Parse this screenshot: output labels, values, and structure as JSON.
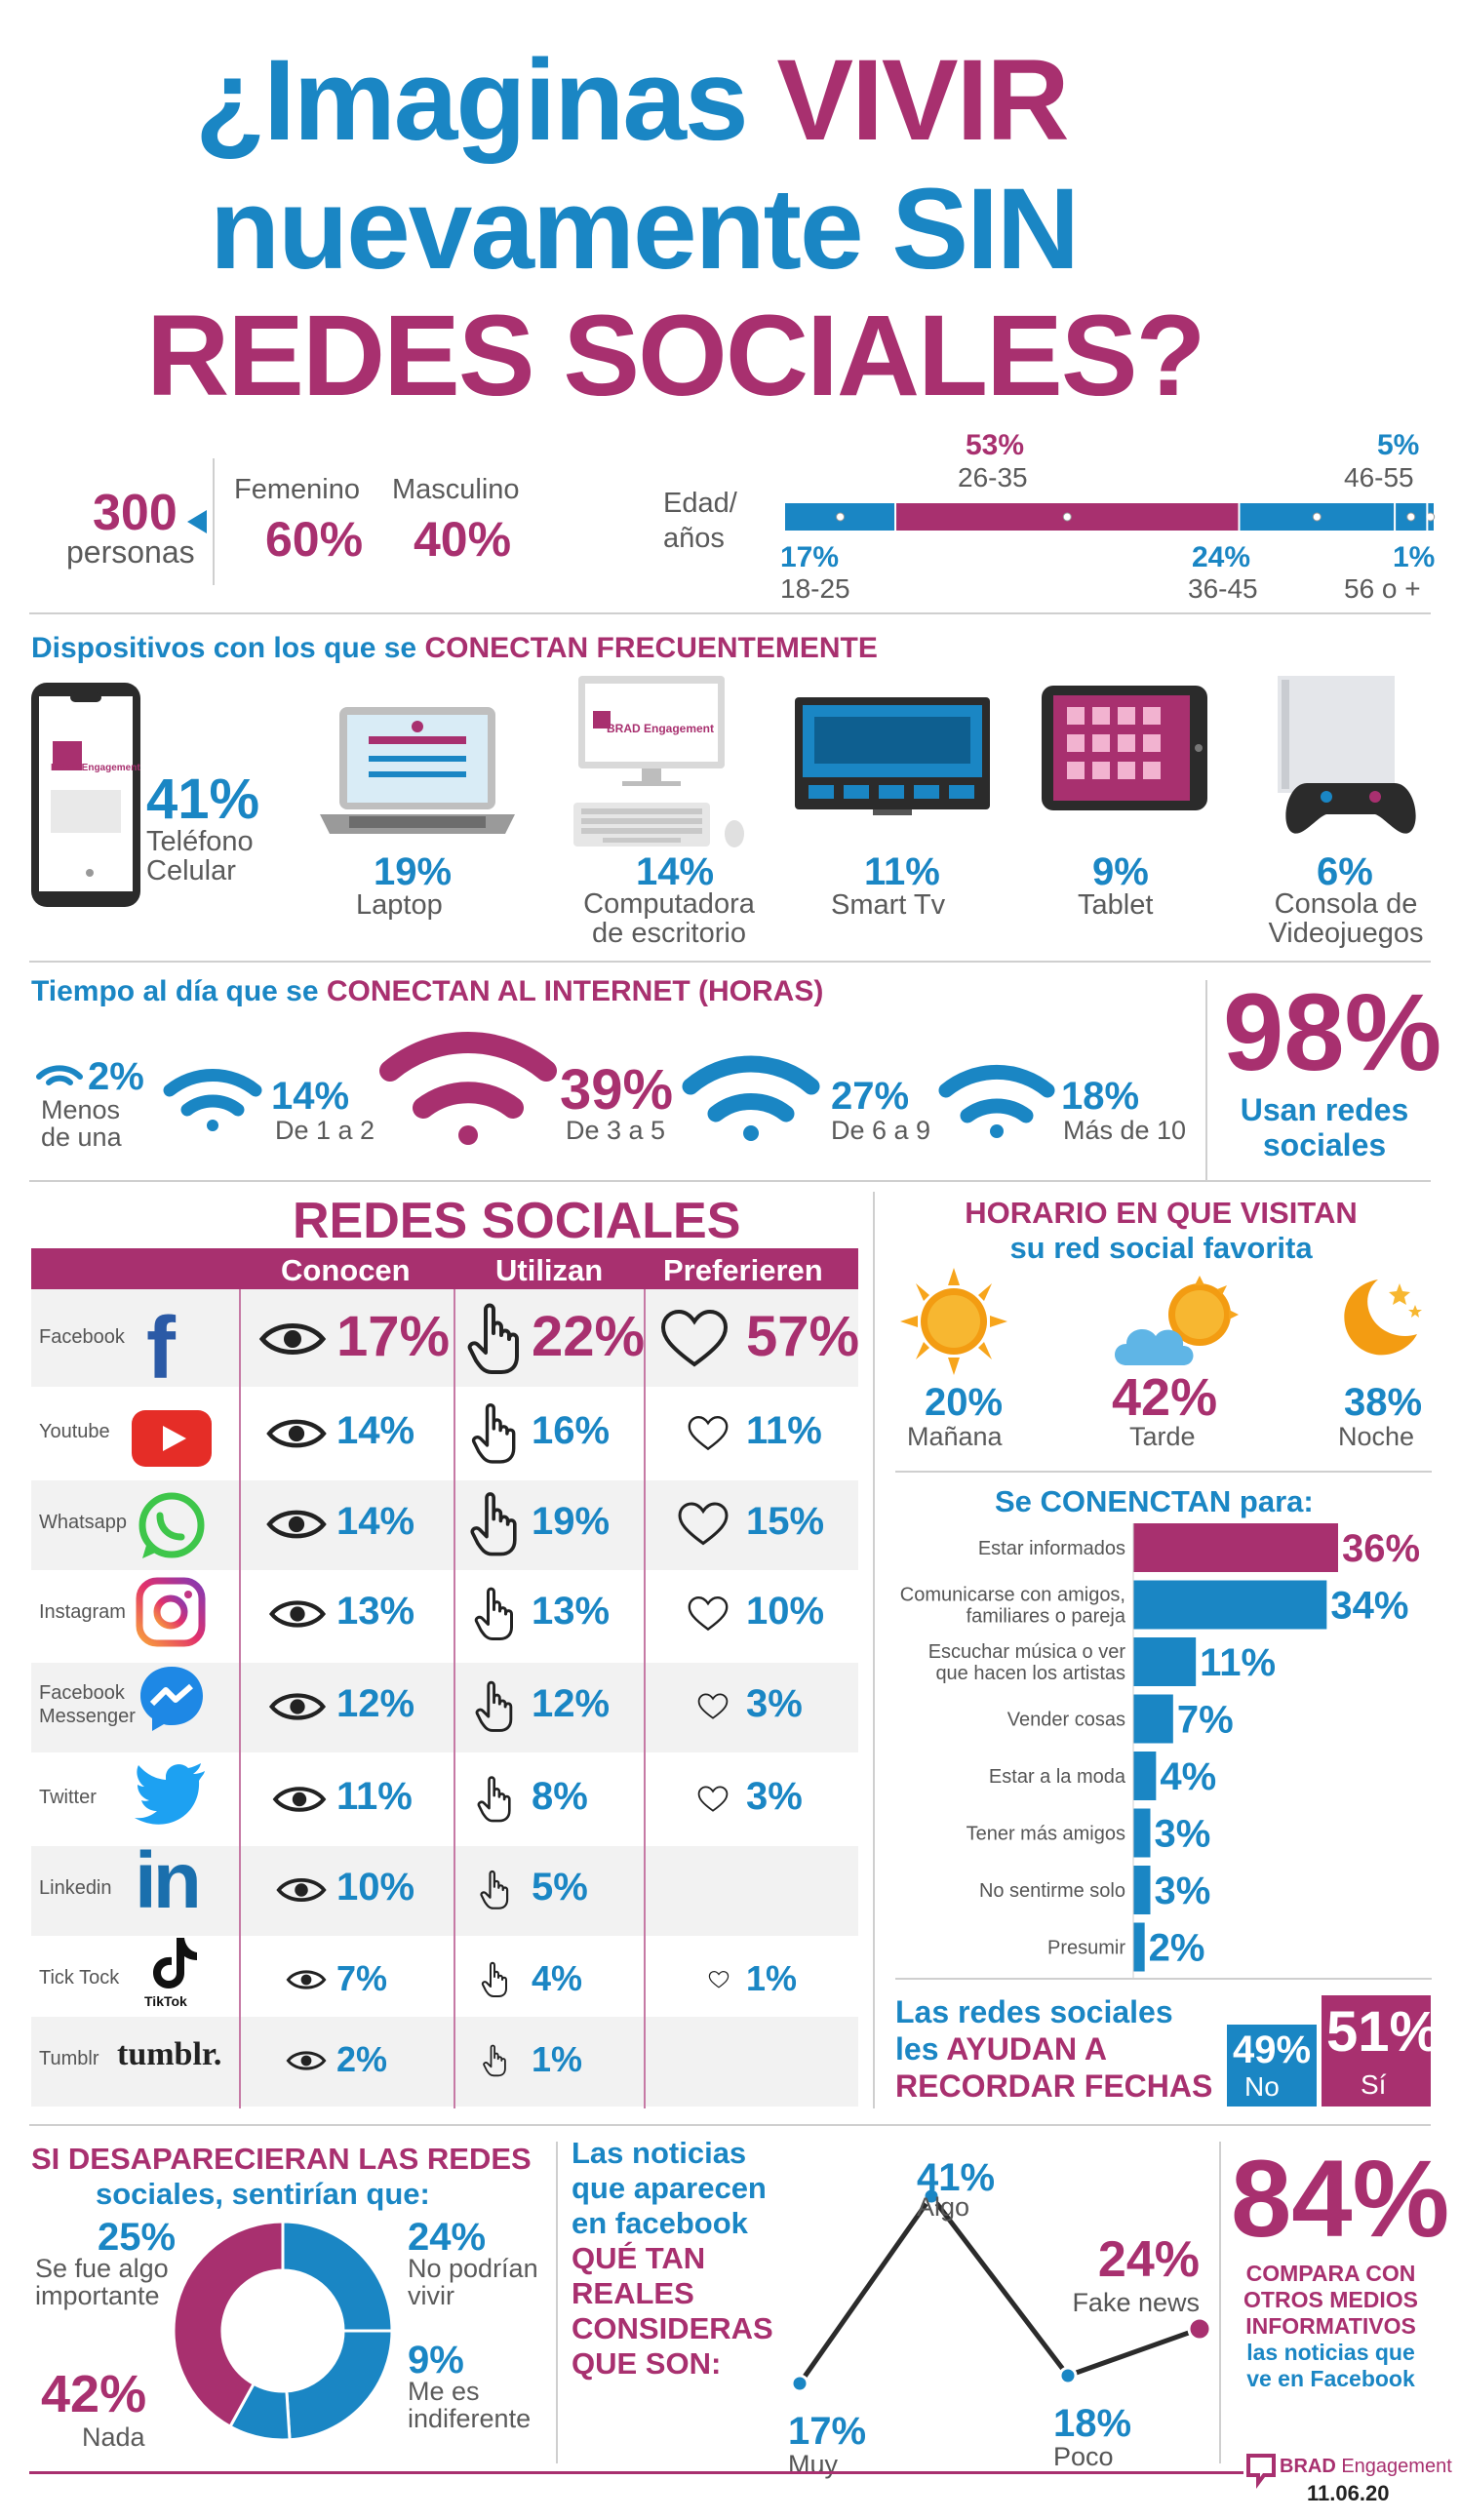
{
  "title": {
    "line1_a": "¿Imaginas",
    "line1_b": "VIVIR",
    "line2_a": "nuevamente",
    "line2_b": "SIN",
    "line3": "REDES SOCIALES?"
  },
  "demographics": {
    "people_count": "300",
    "people_label": "personas",
    "female_label": "Femenino",
    "female_pct": "60%",
    "male_label": "Masculino",
    "male_pct": "40%",
    "age_label_1": "Edad/",
    "age_label_2": "años",
    "age_groups": [
      {
        "pct": "17%",
        "range": "18-25",
        "value": 17
      },
      {
        "pct": "53%",
        "range": "26-35",
        "value": 53
      },
      {
        "pct": "24%",
        "range": "36-45",
        "value": 24
      },
      {
        "pct": "5%",
        "range": "46-55",
        "value": 5
      },
      {
        "pct": "1%",
        "range": "56 o +",
        "value": 1
      }
    ]
  },
  "devices": {
    "heading_a": "Dispositivos con los que se",
    "heading_b": "CONECTAN FRECUENTEMENTE",
    "items": [
      {
        "pct": "41%",
        "label": "Teléfono Celular",
        "label1": "Teléfono",
        "label2": "Celular",
        "icon": "smartphone-icon"
      },
      {
        "pct": "19%",
        "label": "Laptop",
        "icon": "laptop-icon"
      },
      {
        "pct": "14%",
        "label": "Computadora de escritorio",
        "label1": "Computadora",
        "label2": "de escritorio",
        "icon": "desktop-icon"
      },
      {
        "pct": "11%",
        "label": "Smart Tv",
        "icon": "tv-icon"
      },
      {
        "pct": "9%",
        "label": "Tablet",
        "icon": "tablet-icon"
      },
      {
        "pct": "6%",
        "label": "Consola de Videojuegos",
        "label1": "Consola de",
        "label2": "Videojuegos",
        "icon": "console-icon"
      }
    ],
    "brand_small": "BRAD Engagement"
  },
  "time": {
    "heading_a": "Tiempo al día  que se",
    "heading_b": "CONECTAN AL INTERNET (HORAS)",
    "items": [
      {
        "pct": "2%",
        "label1": "Menos",
        "label2": "de una"
      },
      {
        "pct": "14%",
        "label1": "De 1 a 2"
      },
      {
        "pct": "39%",
        "label1": "De 3 a 5"
      },
      {
        "pct": "27%",
        "label1": "De 6 a 9"
      },
      {
        "pct": "18%",
        "label1": "Más de 10"
      }
    ],
    "use_pct": "98%",
    "use_label1": "Usan redes",
    "use_label2": "sociales"
  },
  "social": {
    "heading": "REDES SOCIALES",
    "col_know": "Conocen",
    "col_use": "Utilizan",
    "col_prefer": "Preferieren",
    "rows": [
      {
        "name": "Facebook",
        "know": "17%",
        "use": "22%",
        "prefer": "57%",
        "icon": "facebook-icon"
      },
      {
        "name": "Youtube",
        "know": "14%",
        "use": "16%",
        "prefer": "11%",
        "icon": "youtube-icon"
      },
      {
        "name": "Whatsapp",
        "know": "14%",
        "use": "19%",
        "prefer": "15%",
        "icon": "whatsapp-icon"
      },
      {
        "name": "Instagram",
        "know": "13%",
        "use": "13%",
        "prefer": "10%",
        "icon": "instagram-icon"
      },
      {
        "name": "Facebook Messenger",
        "name1": "Facebook",
        "name2": "Messenger",
        "know": "12%",
        "use": "12%",
        "prefer": "3%",
        "icon": "messenger-icon"
      },
      {
        "name": "Twitter",
        "know": "11%",
        "use": "8%",
        "prefer": "3%",
        "icon": "twitter-icon"
      },
      {
        "name": "Linkedin",
        "know": "10%",
        "use": "5%",
        "prefer": "",
        "icon": "linkedin-icon"
      },
      {
        "name": "Tick Tock",
        "know": "7%",
        "use": "4%",
        "prefer": "1%",
        "icon": "tiktok-icon",
        "logo_text": "TikTok"
      },
      {
        "name": "Tumblr",
        "know": "2%",
        "use": "1%",
        "prefer": "",
        "icon": "tumblr-icon",
        "logo_text": "tumblr."
      }
    ]
  },
  "schedule": {
    "heading1": "HORARIO EN QUE VISITAN",
    "heading2": "su red social favorita",
    "items": [
      {
        "pct": "20%",
        "label": "Mañana",
        "icon": "sun-icon"
      },
      {
        "pct": "42%",
        "label": "Tarde",
        "icon": "sun-cloud-icon"
      },
      {
        "pct": "38%",
        "label": "Noche",
        "icon": "moon-icon"
      }
    ]
  },
  "reasons": {
    "heading": "Se CONENCTAN para:",
    "chart_data": {
      "type": "bar",
      "orientation": "horizontal",
      "categories": [
        "Estar informados",
        "Comunicarse con amigos, familiares o pareja",
        "Escuchar música o ver que hacen los artistas",
        "Vender cosas",
        "Estar a la moda",
        "Tener más amigos",
        "No sentirme solo",
        "Presumir"
      ],
      "values": [
        36,
        34,
        11,
        7,
        4,
        3,
        3,
        2
      ],
      "labels": [
        "36%",
        "34%",
        "11%",
        "7%",
        "4%",
        "3%",
        "3%",
        "2%"
      ],
      "colors": [
        "#a8306f",
        "#1a86c4",
        "#1a86c4",
        "#1a86c4",
        "#1a86c4",
        "#1a86c4",
        "#1a86c4",
        "#1a86c4"
      ]
    },
    "cat_lines": [
      [
        "Estar informados"
      ],
      [
        "Comunicarse con amigos,",
        "familiares o pareja"
      ],
      [
        "Escuchar música o ver",
        "que hacen los artistas"
      ],
      [
        "Vender cosas"
      ],
      [
        "Estar a la moda"
      ],
      [
        "Tener más amigos"
      ],
      [
        "No sentirme solo"
      ],
      [
        "Presumir"
      ]
    ]
  },
  "dates": {
    "text1": "Las redes sociales",
    "text2a": "les",
    "text2b": "AYUDAN A",
    "text3": "RECORDAR FECHAS",
    "no_pct": "49%",
    "no_label": "No",
    "yes_pct": "51%",
    "yes_label": "Sí"
  },
  "feelings": {
    "heading1": "SI DESAPARECIERAN LAS REDES",
    "heading2": "sociales, sentirían que:",
    "chart_data": {
      "type": "pie",
      "variant": "donut",
      "categories": [
        "Se fue algo importante",
        "No podrían vivir",
        "Me es indiferente",
        "Nada"
      ],
      "values": [
        25,
        24,
        9,
        42
      ],
      "colors": [
        "#1a86c4",
        "#1a86c4",
        "#1a86c4",
        "#a8306f"
      ]
    },
    "labels": [
      {
        "pct": "25%",
        "l1": "Se fue algo",
        "l2": "importante"
      },
      {
        "pct": "24%",
        "l1": "No podrían",
        "l2": "vivir"
      },
      {
        "pct": "9%",
        "l1": "Me es",
        "l2": "indiferente"
      },
      {
        "pct": "42%",
        "l1": "Nada"
      }
    ]
  },
  "news": {
    "l1": "Las noticias",
    "l2": "que aparecen",
    "l3": "en facebook",
    "l4": "QUÉ TAN",
    "l5": "REALES",
    "l6": "CONSIDERAS",
    "l7": "QUE SON:",
    "chart_data": {
      "type": "line",
      "categories": [
        "Muy",
        "Algo",
        "Poco",
        "Fake news"
      ],
      "values": [
        17,
        41,
        18,
        24
      ],
      "labels": [
        "17%",
        "41%",
        "18%",
        "24%"
      ]
    }
  },
  "compare": {
    "pct": "84%",
    "l1": "COMPARA CON",
    "l2": "OTROS MEDIOS",
    "l3": "INFORMATIVOS",
    "l4": "las noticias que",
    "l5": "ve en Facebook"
  },
  "footer": {
    "brand_a": "BRAD",
    "brand_b": "Engagement",
    "date": "11.06.20"
  },
  "colors": {
    "blue": "#1a86c4",
    "magenta": "#a8306f"
  }
}
